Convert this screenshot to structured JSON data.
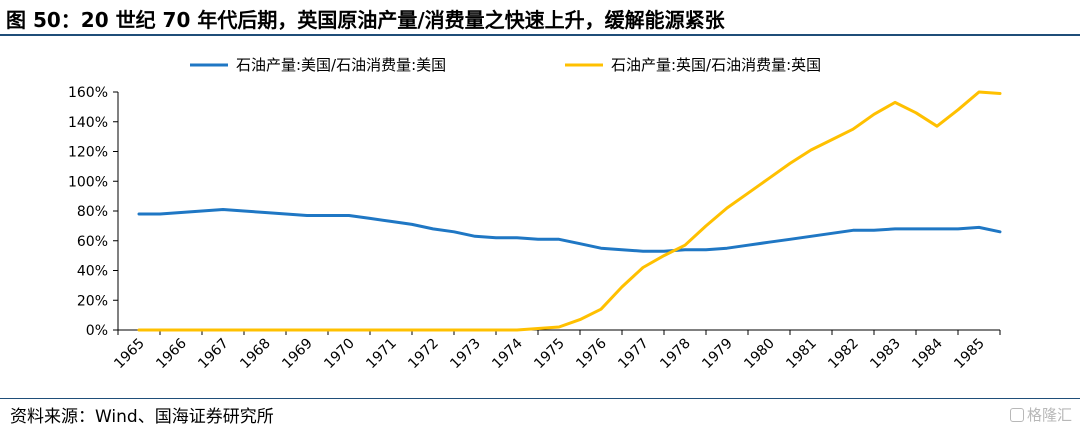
{
  "title": "图 50：20 世纪 70 年代后期，英国原油产量/消费量之快速上升，缓解能源紧张",
  "source": "资料来源：Wind、国海证券研究所",
  "watermark": "格隆汇",
  "colors": {
    "us": "#1f77c4",
    "uk": "#ffc000",
    "rule": "#1f4e79",
    "axis": "#000000"
  },
  "chart_data": {
    "type": "line",
    "x": [
      "1965",
      "1966",
      "1967",
      "1968",
      "1969",
      "1970",
      "1971",
      "1972",
      "1973",
      "1974",
      "1975",
      "1976",
      "1977",
      "1978",
      "1979",
      "1980",
      "1981",
      "1982",
      "1983",
      "1984",
      "1985"
    ],
    "ylim": [
      0,
      160
    ],
    "y_ticks": [
      "0%",
      "20%",
      "40%",
      "60%",
      "80%",
      "100%",
      "120%",
      "140%",
      "160%"
    ],
    "y_unit": "%",
    "legend_position": "top",
    "grid": false,
    "series": [
      {
        "name": "石油产量:美国/石油消费量:美国",
        "color": "#1f77c4",
        "points": [
          [
            0,
            78
          ],
          [
            0.5,
            78
          ],
          [
            1,
            79
          ],
          [
            1.5,
            80
          ],
          [
            2,
            81
          ],
          [
            2.5,
            80
          ],
          [
            3,
            79
          ],
          [
            3.5,
            78
          ],
          [
            4,
            77
          ],
          [
            4.5,
            77
          ],
          [
            5,
            77
          ],
          [
            5.5,
            75
          ],
          [
            6,
            73
          ],
          [
            6.5,
            71
          ],
          [
            7,
            68
          ],
          [
            7.5,
            66
          ],
          [
            8,
            63
          ],
          [
            8.5,
            62
          ],
          [
            9,
            62
          ],
          [
            9.5,
            61
          ],
          [
            10,
            61
          ],
          [
            10.5,
            58
          ],
          [
            11,
            55
          ],
          [
            11.5,
            54
          ],
          [
            12,
            53
          ],
          [
            12.5,
            53
          ],
          [
            13,
            54
          ],
          [
            13.5,
            54
          ],
          [
            14,
            55
          ],
          [
            14.5,
            57
          ],
          [
            15,
            59
          ],
          [
            15.5,
            61
          ],
          [
            16,
            63
          ],
          [
            16.5,
            65
          ],
          [
            17,
            67
          ],
          [
            17.5,
            67
          ],
          [
            18,
            68
          ],
          [
            18.5,
            68
          ],
          [
            19,
            68
          ],
          [
            19.5,
            68
          ],
          [
            20,
            69
          ],
          [
            20.5,
            66
          ]
        ]
      },
      {
        "name": "石油产量:英国/石油消费量:英国",
        "color": "#ffc000",
        "points": [
          [
            0,
            0
          ],
          [
            1,
            0
          ],
          [
            2,
            0
          ],
          [
            3,
            0
          ],
          [
            4,
            0
          ],
          [
            5,
            0
          ],
          [
            6,
            0
          ],
          [
            7,
            0
          ],
          [
            8,
            0
          ],
          [
            9,
            0
          ],
          [
            9.5,
            1
          ],
          [
            10,
            2
          ],
          [
            10.5,
            7
          ],
          [
            11,
            14
          ],
          [
            11.5,
            29
          ],
          [
            12,
            42
          ],
          [
            12.5,
            50
          ],
          [
            13,
            57
          ],
          [
            13.5,
            70
          ],
          [
            14,
            82
          ],
          [
            14.5,
            92
          ],
          [
            15,
            102
          ],
          [
            15.5,
            112
          ],
          [
            16,
            121
          ],
          [
            16.5,
            128
          ],
          [
            17,
            135
          ],
          [
            17.5,
            145
          ],
          [
            18,
            153
          ],
          [
            18.5,
            146
          ],
          [
            19,
            137
          ],
          [
            19.5,
            148
          ],
          [
            20,
            160
          ],
          [
            20.5,
            159
          ]
        ]
      }
    ]
  }
}
